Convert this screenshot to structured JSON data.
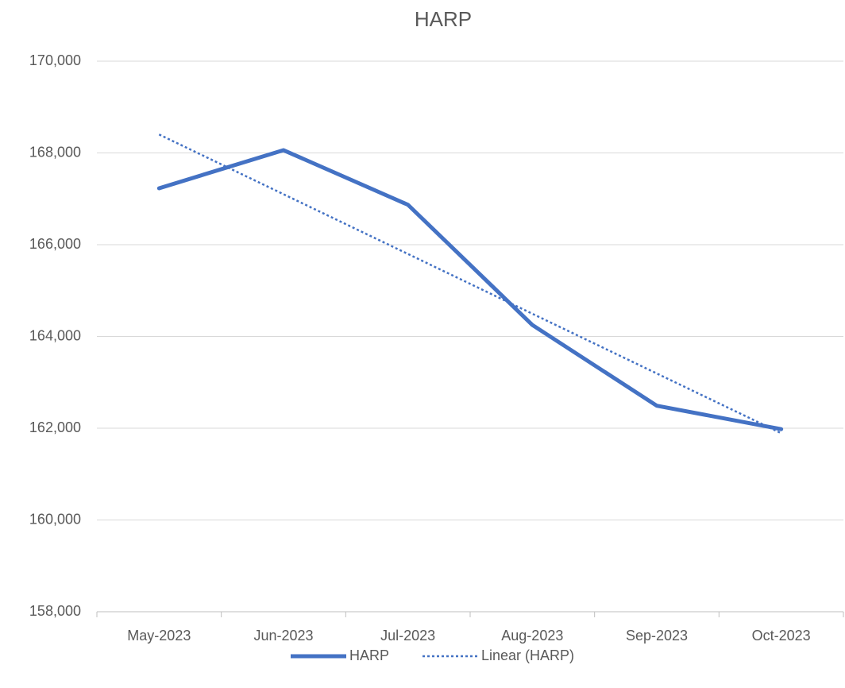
{
  "chart_data": {
    "type": "line",
    "title": "HARP",
    "categories": [
      "May-2023",
      "Jun-2023",
      "Jul-2023",
      "Aug-2023",
      "Sep-2023",
      "Oct-2023"
    ],
    "series": [
      {
        "name": "HARP",
        "color": "#4472c4",
        "style": "solid",
        "values": [
          167230,
          168060,
          166870,
          164250,
          162490,
          161980
        ]
      },
      {
        "name": "Linear (HARP)",
        "color": "#4472c4",
        "style": "dotted",
        "values": [
          168402,
          167100,
          165798,
          164495,
          163193,
          161891
        ]
      }
    ],
    "ylim": [
      158000,
      170000
    ],
    "yticks": [
      {
        "value": 158000,
        "label": "158,000"
      },
      {
        "value": 160000,
        "label": "160,000"
      },
      {
        "value": 162000,
        "label": "162,000"
      },
      {
        "value": 164000,
        "label": "164,000"
      },
      {
        "value": 166000,
        "label": "166,000"
      },
      {
        "value": 168000,
        "label": "168,000"
      },
      {
        "value": 170000,
        "label": "170,000"
      }
    ],
    "grid": true,
    "legend": "bottom"
  }
}
